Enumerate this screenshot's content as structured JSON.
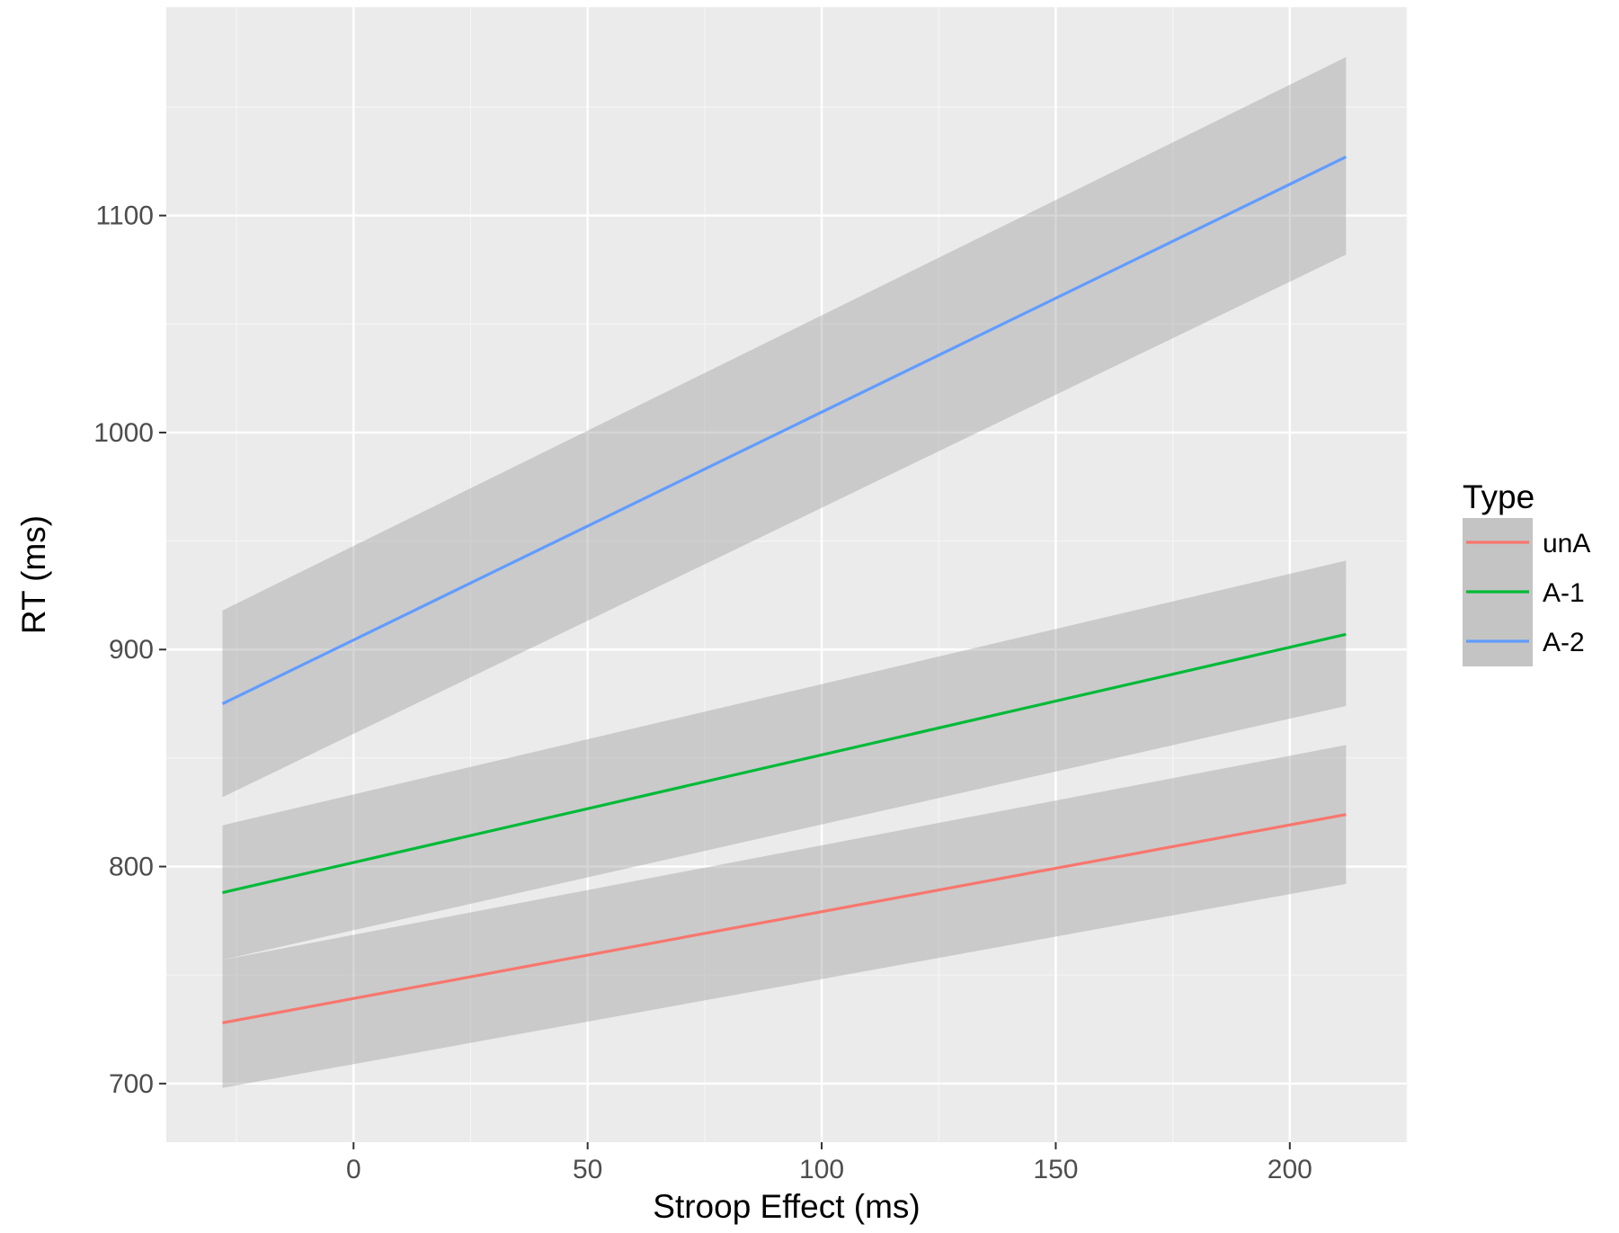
{
  "chart_data": {
    "type": "line",
    "xlabel": "Stroop Effect (ms)",
    "ylabel": "RT (ms)",
    "xlim": [
      -40,
      225
    ],
    "ylim": [
      673,
      1196
    ],
    "x_ticks": [
      0,
      50,
      100,
      150,
      200
    ],
    "y_ticks": [
      700,
      800,
      900,
      1000,
      1100
    ],
    "grid": true,
    "confidence_bands": true,
    "legend": {
      "title": "Type",
      "placement": "right"
    },
    "series": [
      {
        "name": "unA",
        "color": "#f8766d",
        "x": [
          -28,
          212
        ],
        "y": [
          728,
          824
        ],
        "ci_lower": [
          698,
          792
        ],
        "ci_upper": [
          757,
          856
        ]
      },
      {
        "name": "A-1",
        "color": "#00ba38",
        "x": [
          -28,
          212
        ],
        "y": [
          788,
          907
        ],
        "ci_lower": [
          757,
          874
        ],
        "ci_upper": [
          819,
          941
        ]
      },
      {
        "name": "A-2",
        "color": "#619cff",
        "x": [
          -28,
          212
        ],
        "y": [
          875,
          1127
        ],
        "ci_lower": [
          832,
          1082
        ],
        "ci_upper": [
          918,
          1173
        ]
      }
    ]
  }
}
